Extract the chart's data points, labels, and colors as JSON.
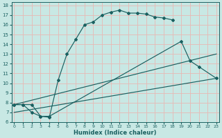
{
  "xlabel": "Humidex (Indice chaleur)",
  "bg_color": "#c8e8e4",
  "grid_color": "#e8b8b4",
  "line_color": "#1a6060",
  "xlim": [
    -0.3,
    23.3
  ],
  "ylim": [
    6.0,
    18.3
  ],
  "xticks": [
    0,
    1,
    2,
    3,
    4,
    5,
    6,
    7,
    8,
    9,
    10,
    11,
    12,
    13,
    14,
    15,
    16,
    17,
    18,
    19,
    20,
    21,
    22,
    23
  ],
  "yticks": [
    6,
    7,
    8,
    9,
    10,
    11,
    12,
    13,
    14,
    15,
    16,
    17,
    18
  ],
  "curve1_x": [
    0,
    1,
    2,
    3,
    4,
    5,
    6,
    7,
    8,
    9,
    10,
    11,
    12,
    13,
    14,
    15,
    16,
    17,
    18
  ],
  "curve1_y": [
    7.8,
    7.8,
    7.8,
    6.6,
    6.5,
    10.3,
    13.0,
    14.5,
    16.0,
    16.3,
    17.0,
    17.3,
    17.5,
    17.2,
    17.2,
    17.1,
    16.8,
    16.7,
    16.5
  ],
  "curve2_x": [
    0,
    1,
    2,
    3,
    4,
    19,
    20,
    21,
    23
  ],
  "curve2_y": [
    7.8,
    7.8,
    7.0,
    6.6,
    6.6,
    14.3,
    12.3,
    11.7,
    10.5
  ],
  "curve3_x": [
    0,
    23
  ],
  "curve3_y": [
    7.8,
    13.0
  ],
  "curve4_x": [
    0,
    23
  ],
  "curve4_y": [
    7.0,
    10.5
  ]
}
